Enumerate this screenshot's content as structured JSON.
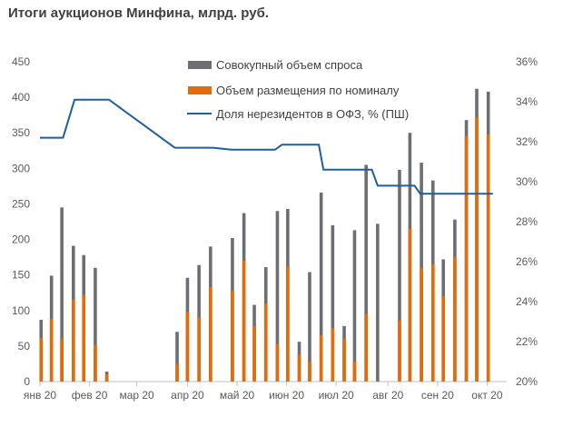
{
  "chart_data": {
    "type": "bar",
    "title": "Итоги аукционов Минфина, млрд. руб.",
    "legend_position": "top-center",
    "grid": false,
    "colors": {
      "demand": "#6d6e71",
      "placement": "#e36c0a",
      "nonresident": "#1f5f9e",
      "axis": "#bfbfbf",
      "text": "#595959"
    },
    "y_left": {
      "min": 0,
      "max": 450,
      "ticks": [
        "0",
        "50",
        "100",
        "150",
        "200",
        "250",
        "300",
        "350",
        "400",
        "450"
      ]
    },
    "y_right": {
      "min": 20,
      "max": 36,
      "ticks": [
        "20%",
        "22%",
        "24%",
        "26%",
        "28%",
        "30%",
        "32%",
        "34%",
        "36%"
      ]
    },
    "x_axis": {
      "min": 0,
      "max": 40.5,
      "ticks": [
        {
          "label": "янв 20",
          "at": 0
        },
        {
          "label": "фев 20",
          "at": 4.3
        },
        {
          "label": "мар 20",
          "at": 8.4
        },
        {
          "label": "апр 20",
          "at": 12.8
        },
        {
          "label": "май 20",
          "at": 17.1
        },
        {
          "label": "июн 20",
          "at": 21.4
        },
        {
          "label": "июл 20",
          "at": 25.7
        },
        {
          "label": "авг 20",
          "at": 30.2
        },
        {
          "label": "сен 20",
          "at": 34.5
        },
        {
          "label": "окт 20",
          "at": 38.8
        }
      ]
    },
    "series": [
      {
        "name": "Совокупный объем спроса",
        "kind": "bar",
        "points": [
          {
            "x": 0.1,
            "y": 87
          },
          {
            "x": 1.0,
            "y": 149
          },
          {
            "x": 1.9,
            "y": 245
          },
          {
            "x": 2.9,
            "y": 191
          },
          {
            "x": 3.8,
            "y": 178
          },
          {
            "x": 4.8,
            "y": 160
          },
          {
            "x": 5.8,
            "y": 14
          },
          {
            "x": 11.9,
            "y": 70
          },
          {
            "x": 12.8,
            "y": 146
          },
          {
            "x": 13.8,
            "y": 164
          },
          {
            "x": 14.8,
            "y": 190
          },
          {
            "x": 16.7,
            "y": 202
          },
          {
            "x": 17.7,
            "y": 237
          },
          {
            "x": 18.6,
            "y": 108
          },
          {
            "x": 19.6,
            "y": 161
          },
          {
            "x": 20.6,
            "y": 240
          },
          {
            "x": 21.5,
            "y": 243
          },
          {
            "x": 22.5,
            "y": 56
          },
          {
            "x": 23.4,
            "y": 154
          },
          {
            "x": 24.4,
            "y": 266
          },
          {
            "x": 25.4,
            "y": 220
          },
          {
            "x": 26.4,
            "y": 78
          },
          {
            "x": 27.3,
            "y": 213
          },
          {
            "x": 28.3,
            "y": 305
          },
          {
            "x": 29.3,
            "y": 222
          },
          {
            "x": 31.2,
            "y": 298
          },
          {
            "x": 32.1,
            "y": 350
          },
          {
            "x": 33.1,
            "y": 308
          },
          {
            "x": 34.1,
            "y": 283
          },
          {
            "x": 35.0,
            "y": 172
          },
          {
            "x": 36.0,
            "y": 228
          },
          {
            "x": 37.0,
            "y": 368
          },
          {
            "x": 37.9,
            "y": 412
          },
          {
            "x": 38.9,
            "y": 408
          }
        ]
      },
      {
        "name": "Объем размещения по номиналу",
        "kind": "bar",
        "points": [
          {
            "x": 0.1,
            "y": 61
          },
          {
            "x": 1.0,
            "y": 88
          },
          {
            "x": 1.9,
            "y": 60
          },
          {
            "x": 2.9,
            "y": 115
          },
          {
            "x": 3.8,
            "y": 122
          },
          {
            "x": 4.8,
            "y": 51
          },
          {
            "x": 5.8,
            "y": 10
          },
          {
            "x": 11.9,
            "y": 25
          },
          {
            "x": 12.8,
            "y": 98
          },
          {
            "x": 13.8,
            "y": 90
          },
          {
            "x": 14.8,
            "y": 133
          },
          {
            "x": 16.7,
            "y": 128
          },
          {
            "x": 17.7,
            "y": 170
          },
          {
            "x": 18.6,
            "y": 78
          },
          {
            "x": 19.6,
            "y": 110
          },
          {
            "x": 20.6,
            "y": 53
          },
          {
            "x": 21.5,
            "y": 162
          },
          {
            "x": 22.5,
            "y": 38
          },
          {
            "x": 23.4,
            "y": 28
          },
          {
            "x": 24.4,
            "y": 65
          },
          {
            "x": 25.4,
            "y": 75
          },
          {
            "x": 26.4,
            "y": 60
          },
          {
            "x": 27.3,
            "y": 28
          },
          {
            "x": 28.3,
            "y": 95
          },
          {
            "x": 29.3,
            "y": 0
          },
          {
            "x": 31.2,
            "y": 86
          },
          {
            "x": 32.1,
            "y": 215
          },
          {
            "x": 33.1,
            "y": 160
          },
          {
            "x": 34.1,
            "y": 165
          },
          {
            "x": 35.0,
            "y": 120
          },
          {
            "x": 36.0,
            "y": 175
          },
          {
            "x": 37.0,
            "y": 345
          },
          {
            "x": 37.9,
            "y": 372
          },
          {
            "x": 38.9,
            "y": 348
          }
        ]
      },
      {
        "name": "Доля нерезидентов в ОФЗ, % (ПШ)",
        "kind": "line",
        "axis": "right",
        "points": [
          {
            "x": 0,
            "y": 32.2
          },
          {
            "x": 2.0,
            "y": 32.2
          },
          {
            "x": 3.0,
            "y": 34.1
          },
          {
            "x": 6.0,
            "y": 34.1
          },
          {
            "x": 11.7,
            "y": 31.7
          },
          {
            "x": 15.0,
            "y": 31.7
          },
          {
            "x": 16.7,
            "y": 31.6
          },
          {
            "x": 20.4,
            "y": 31.6
          },
          {
            "x": 21.0,
            "y": 31.85
          },
          {
            "x": 24.2,
            "y": 31.85
          },
          {
            "x": 24.6,
            "y": 30.6
          },
          {
            "x": 28.8,
            "y": 30.6
          },
          {
            "x": 29.3,
            "y": 29.8
          },
          {
            "x": 32.5,
            "y": 29.8
          },
          {
            "x": 33.0,
            "y": 29.4
          },
          {
            "x": 39.3,
            "y": 29.4
          }
        ]
      }
    ]
  }
}
